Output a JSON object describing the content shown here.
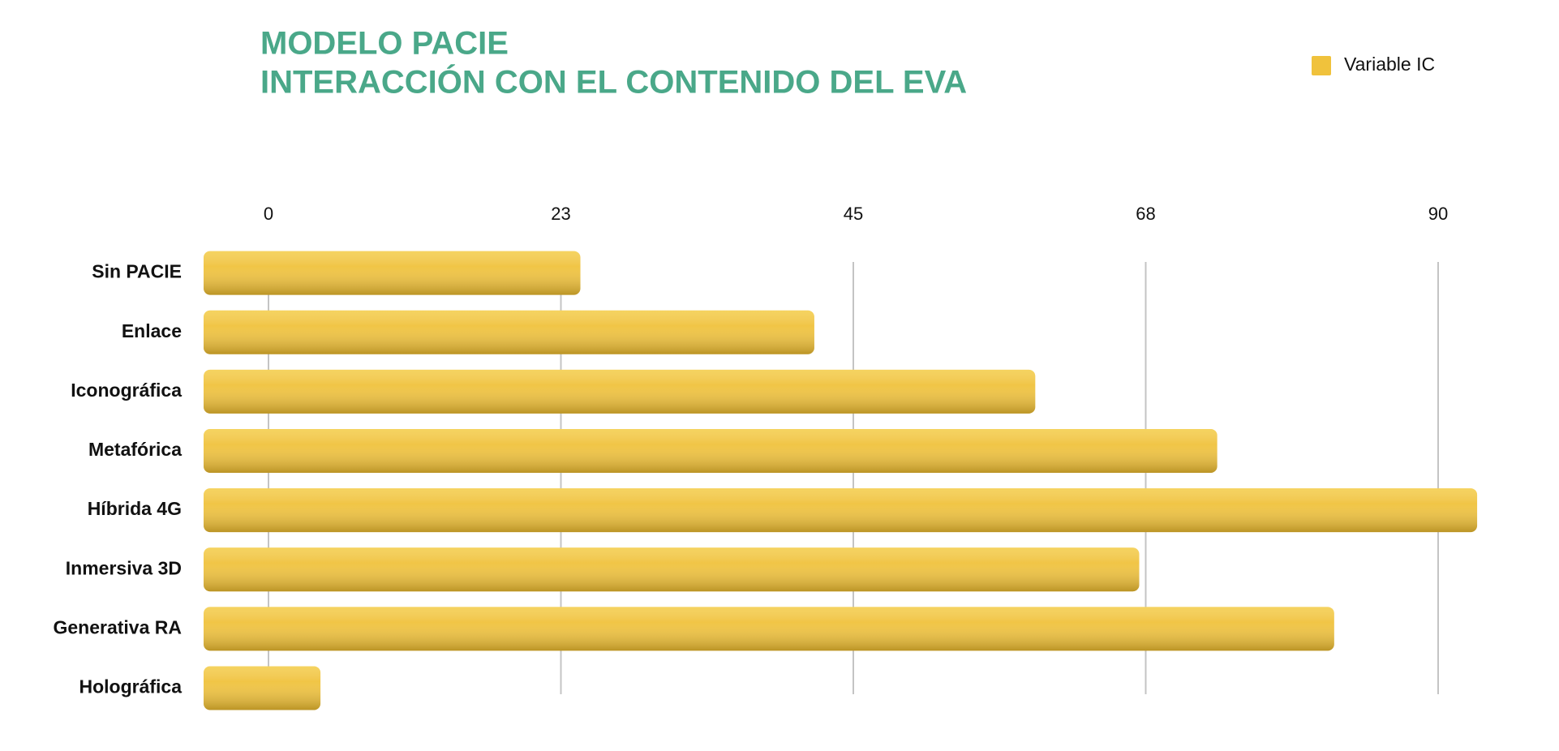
{
  "chart_data": {
    "type": "bar",
    "orientation": "horizontal",
    "title": [
      "MODELO PACIE",
      "INTERACCIÓN CON EL CONTENIDO DEL EVA"
    ],
    "categories": [
      "Sin PACIE",
      "Enlace",
      "Iconográfica",
      "Metafórica",
      "Híbrida 4G",
      "Inmersiva 3D",
      "Generativa RA",
      "Holográfica"
    ],
    "series": [
      {
        "name": "Variable IC",
        "color": "#f0c23c",
        "values": [
          24,
          42,
          59,
          73,
          93,
          67,
          82,
          4
        ]
      }
    ],
    "xlim": [
      0,
      95
    ],
    "xticks": [
      0,
      {
        "value": 22.5,
        "label": "23"
      },
      45,
      {
        "value": 67.5,
        "label": "68"
      },
      90
    ],
    "grid": true,
    "legend": "top-right"
  }
}
